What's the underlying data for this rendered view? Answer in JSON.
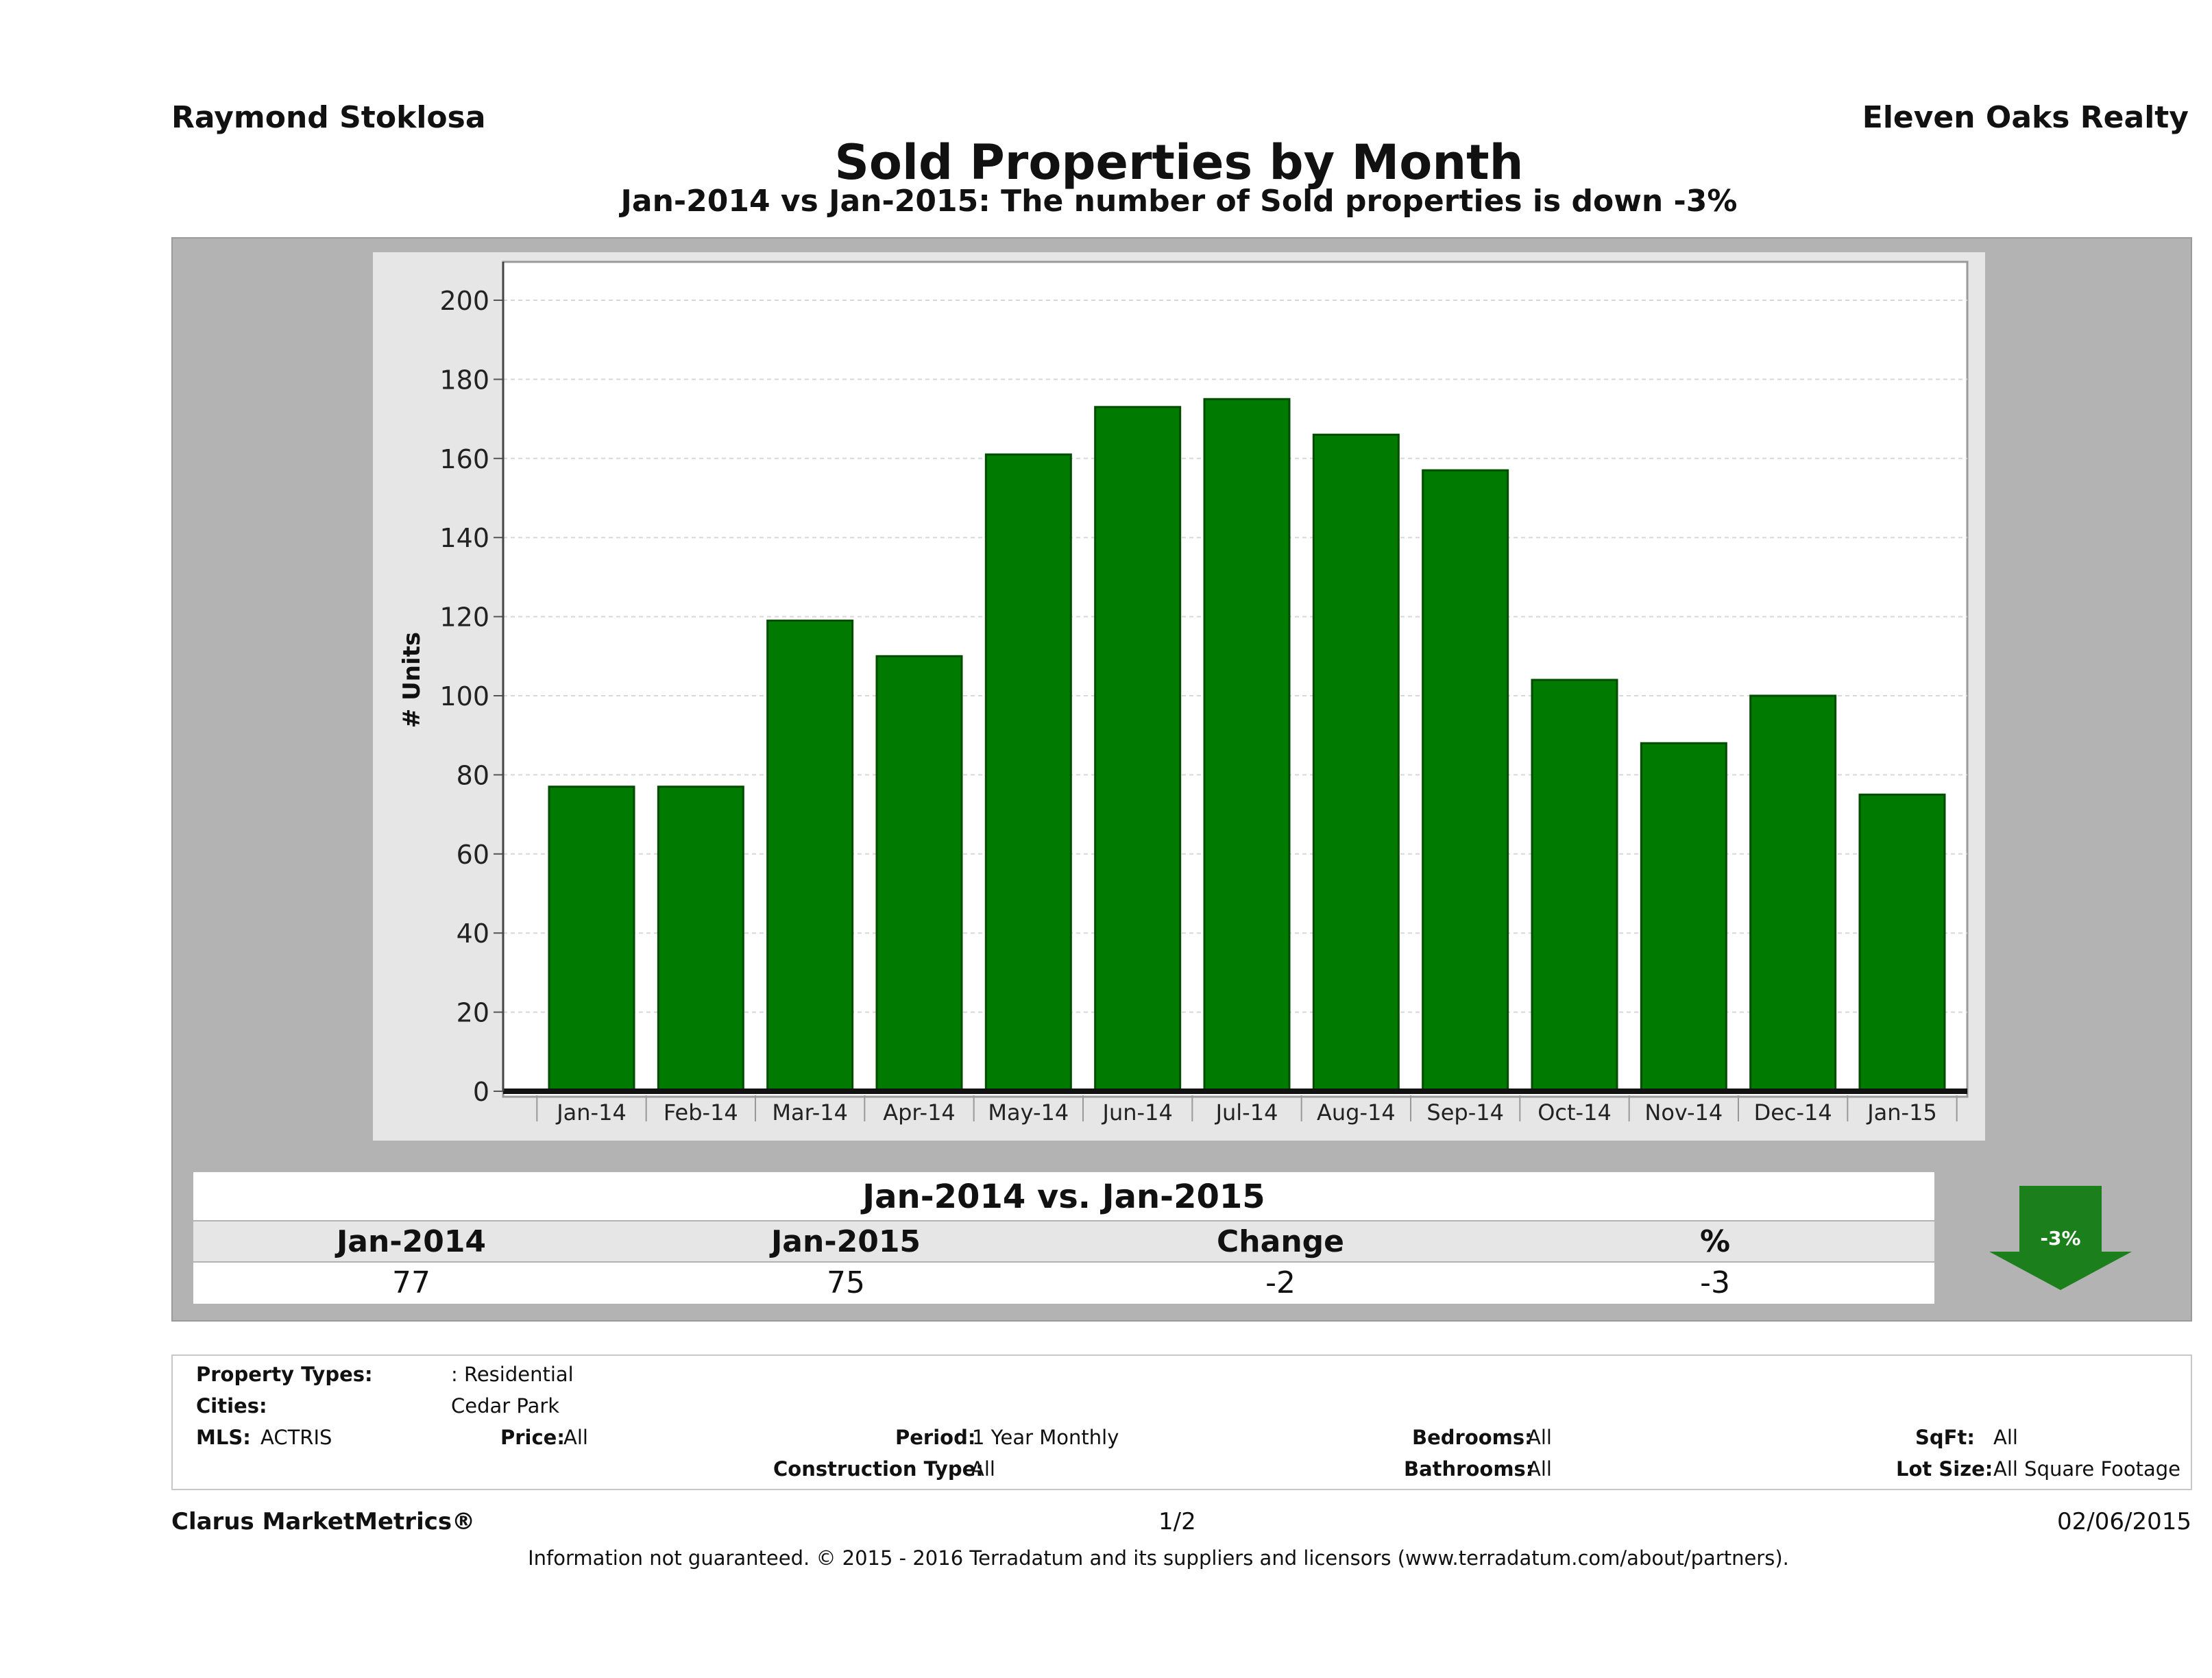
{
  "header": {
    "agent_name": "Raymond Stoklosa",
    "broker_name": "Eleven Oaks Realty",
    "title": "Sold Properties by Month",
    "subtitle": "Jan-2014 vs Jan-2015: The number of Sold  properties is down -3%"
  },
  "chart_data": {
    "type": "bar",
    "categories": [
      "Jan-14",
      "Feb-14",
      "Mar-14",
      "Apr-14",
      "May-14",
      "Jun-14",
      "Jul-14",
      "Aug-14",
      "Sep-14",
      "Oct-14",
      "Nov-14",
      "Dec-14",
      "Jan-15"
    ],
    "values": [
      77,
      77,
      119,
      110,
      161,
      173,
      175,
      166,
      157,
      104,
      88,
      100,
      75
    ],
    "title": "",
    "xlabel": "",
    "ylabel": "# Units",
    "ylim": [
      0,
      210
    ],
    "yticks": [
      0,
      20,
      40,
      60,
      80,
      100,
      120,
      140,
      160,
      180,
      200
    ],
    "grid": true,
    "bar_color": "#007a00"
  },
  "summary": {
    "title": "Jan-2014 vs. Jan-2015",
    "headers": [
      "Jan-2014",
      "Jan-2015",
      "Change",
      "%"
    ],
    "values": [
      "77",
      "75",
      "-2",
      "-3"
    ],
    "badge": "-3%",
    "badge_color": "#1b7f1b"
  },
  "criteria": {
    "property_types_label": "Property Types:",
    "property_types_value": ": Residential",
    "cities_label": "Cities:",
    "cities_value": "Cedar Park",
    "mls_label": "MLS:",
    "mls_value": "ACTRIS",
    "price_label": "Price:",
    "price_value": "All",
    "period_label": "Period:",
    "period_value": "1 Year Monthly",
    "construction_label": "Construction Type:",
    "construction_value": "All",
    "bedrooms_label": "Bedrooms:",
    "bedrooms_value": "All",
    "bathrooms_label": "Bathrooms:",
    "bathrooms_value": "All",
    "sqft_label": "SqFt:",
    "sqft_value": "All",
    "lotsize_label": "Lot Size:",
    "lotsize_value": "All Square Footage"
  },
  "footer": {
    "brand": "Clarus MarketMetrics®",
    "page": "1/2",
    "date": "02/06/2015",
    "disclaimer": "Information not guaranteed. © 2015 - 2016 Terradatum and its suppliers and licensors (www.terradatum.com/about/partners)."
  }
}
